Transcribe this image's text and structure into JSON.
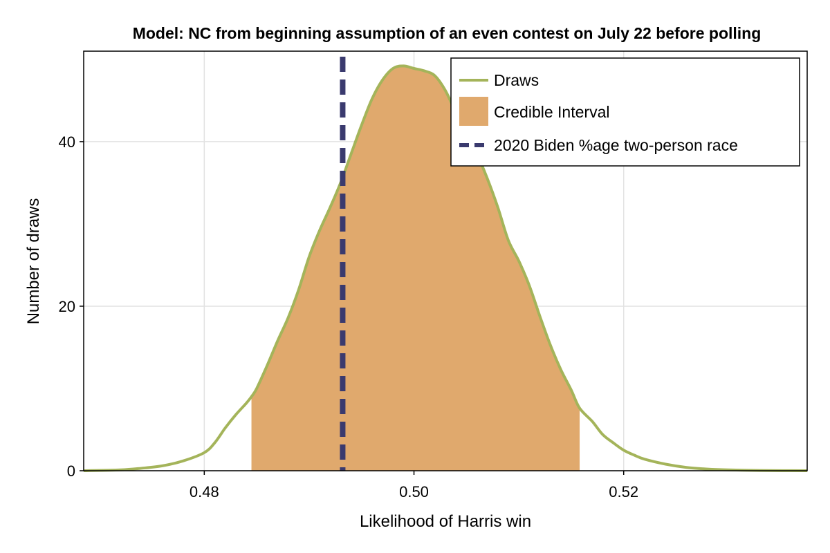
{
  "chart_data": {
    "type": "area",
    "title": "Model: NC from beginning assumption of an even contest on July 22 before polling",
    "xlabel": "Likelihood of Harris win",
    "ylabel": "Number of draws",
    "xlim": [
      0.4685,
      0.5375
    ],
    "ylim": [
      0,
      51
    ],
    "xticks": [
      0.48,
      0.5,
      0.52
    ],
    "xtick_labels": [
      "0.48",
      "0.50",
      "0.52"
    ],
    "yticks": [
      0,
      20,
      40
    ],
    "ytick_labels": [
      "0",
      "20",
      "40"
    ],
    "grid": true,
    "legend_position": "top-right",
    "series": [
      {
        "name": "Draws",
        "color": "#a4b45a",
        "x": [
          0.4685,
          0.472,
          0.474,
          0.476,
          0.478,
          0.48,
          0.481,
          0.482,
          0.483,
          0.484,
          0.4845,
          0.485,
          0.486,
          0.487,
          0.488,
          0.489,
          0.49,
          0.491,
          0.492,
          0.493,
          0.494,
          0.495,
          0.496,
          0.497,
          0.498,
          0.499,
          0.5,
          0.501,
          0.502,
          0.503,
          0.504,
          0.505,
          0.506,
          0.507,
          0.508,
          0.509,
          0.51,
          0.511,
          0.512,
          0.513,
          0.514,
          0.515,
          0.5158,
          0.517,
          0.518,
          0.519,
          0.52,
          0.521,
          0.522,
          0.524,
          0.526,
          0.528,
          0.53,
          0.533,
          0.5375
        ],
        "values": [
          0.0,
          0.1,
          0.3,
          0.6,
          1.2,
          2.2,
          3.4,
          5.2,
          6.8,
          8.2,
          9.0,
          10.0,
          12.8,
          15.8,
          18.6,
          22.0,
          26.0,
          29.2,
          32.0,
          35.0,
          38.5,
          42.0,
          45.2,
          47.5,
          48.9,
          49.2,
          48.9,
          48.6,
          48.0,
          46.2,
          43.5,
          41.0,
          38.5,
          35.5,
          32.0,
          28.0,
          25.5,
          22.5,
          18.8,
          15.3,
          12.3,
          9.8,
          7.6,
          6.0,
          4.4,
          3.4,
          2.5,
          1.9,
          1.4,
          0.8,
          0.4,
          0.2,
          0.1,
          0.03,
          0.0
        ]
      }
    ],
    "credible_interval": {
      "name": "Credible Interval",
      "color": "#e0a96d",
      "x_min": 0.4845,
      "x_max": 0.5158
    },
    "reference_line": {
      "name": "2020 Biden %age two-person race",
      "color": "#3a3a6e",
      "x": 0.4932
    }
  }
}
